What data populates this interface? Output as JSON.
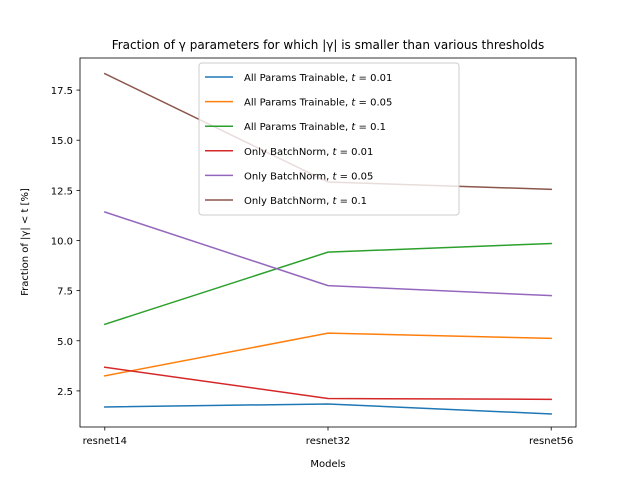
{
  "chart_data": {
    "type": "line",
    "title": "Fraction of γ parameters for which |γ| is smaller than various thresholds",
    "xlabel": "Models",
    "ylabel": "Fraction of |γ| < t [%]",
    "categories": [
      "resnet14",
      "resnet32",
      "resnet56"
    ],
    "ylim": [
      0.7,
      19.1
    ],
    "yticks": [
      2.5,
      5.0,
      7.5,
      10.0,
      12.5,
      15.0,
      17.5
    ],
    "grid": false,
    "legend_position": "top-center",
    "series": [
      {
        "name": "All Params Trainable, t = 0.01",
        "name_prefix": "All Params Trainable, ",
        "t_value": "0.01",
        "color": "#1f77b4",
        "values": [
          1.7,
          1.85,
          1.35
        ]
      },
      {
        "name": "All Params Trainable, t = 0.05",
        "name_prefix": "All Params Trainable, ",
        "t_value": "0.05",
        "color": "#ff7f0e",
        "values": [
          3.25,
          5.38,
          5.12
        ]
      },
      {
        "name": "All Params Trainable, t = 0.1",
        "name_prefix": "All Params Trainable, ",
        "t_value": "0.1",
        "color": "#2ca02c",
        "values": [
          5.82,
          9.42,
          9.85
        ]
      },
      {
        "name": "Only BatchNorm, t = 0.01",
        "name_prefix": "Only BatchNorm, ",
        "t_value": "0.01",
        "color": "#d62728",
        "values": [
          3.68,
          2.12,
          2.08
        ]
      },
      {
        "name": "Only BatchNorm, t = 0.05",
        "name_prefix": "Only BatchNorm, ",
        "t_value": "0.05",
        "color": "#9467bd",
        "values": [
          11.42,
          7.75,
          7.25
        ]
      },
      {
        "name": "Only BatchNorm, t = 0.1",
        "name_prefix": "Only BatchNorm, ",
        "t_value": "0.1",
        "color": "#8c564b",
        "values": [
          18.32,
          12.92,
          12.55
        ]
      }
    ]
  }
}
